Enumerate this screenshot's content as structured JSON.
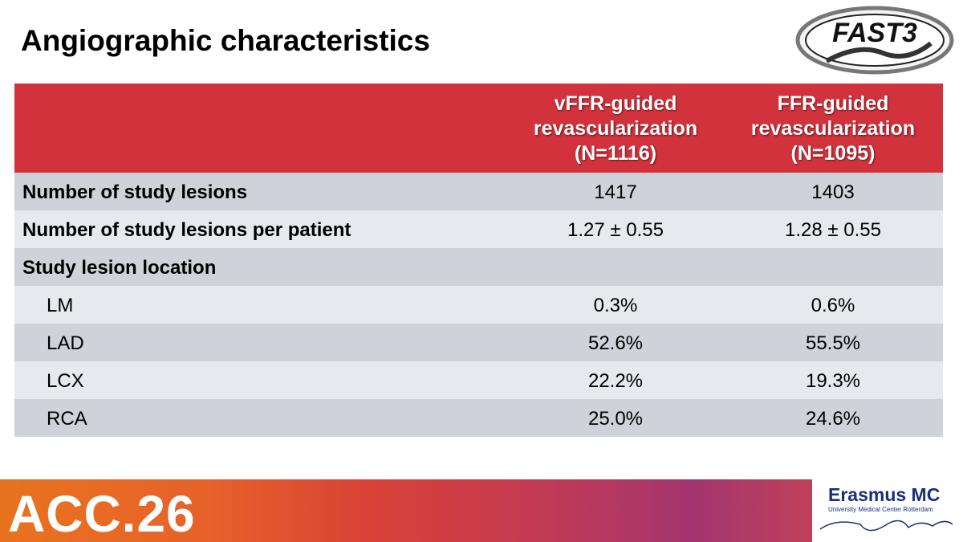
{
  "title": "Angiographic characteristics",
  "logo": {
    "text": "FAST3"
  },
  "table": {
    "columns": [
      {
        "lines": [
          "vFFR-guided",
          "revascularization",
          "(N=1116)"
        ]
      },
      {
        "lines": [
          "FFR-guided",
          "revascularization",
          "(N=1095)"
        ]
      }
    ],
    "rows": [
      {
        "label": "Number of study lesions",
        "values": [
          "1417",
          "1403"
        ]
      },
      {
        "label": "Number of study lesions per patient",
        "values": [
          "1.27 ± 0.55",
          "1.28 ± 0.55"
        ]
      },
      {
        "label": "Study lesion location",
        "subrows": [
          {
            "label": "LM",
            "values": [
              "0.3%",
              "0.6%"
            ]
          },
          {
            "label": "LAD",
            "values": [
              "52.6%",
              "55.5%"
            ]
          },
          {
            "label": "LCX",
            "values": [
              "22.2%",
              "19.3%"
            ]
          },
          {
            "label": "RCA",
            "values": [
              "25.0%",
              "24.6%"
            ]
          }
        ]
      }
    ]
  },
  "footer": {
    "event": "ACC.26",
    "institution": "Erasmus MC",
    "institution_subtitle": "University Medical Center Rotterdam"
  }
}
